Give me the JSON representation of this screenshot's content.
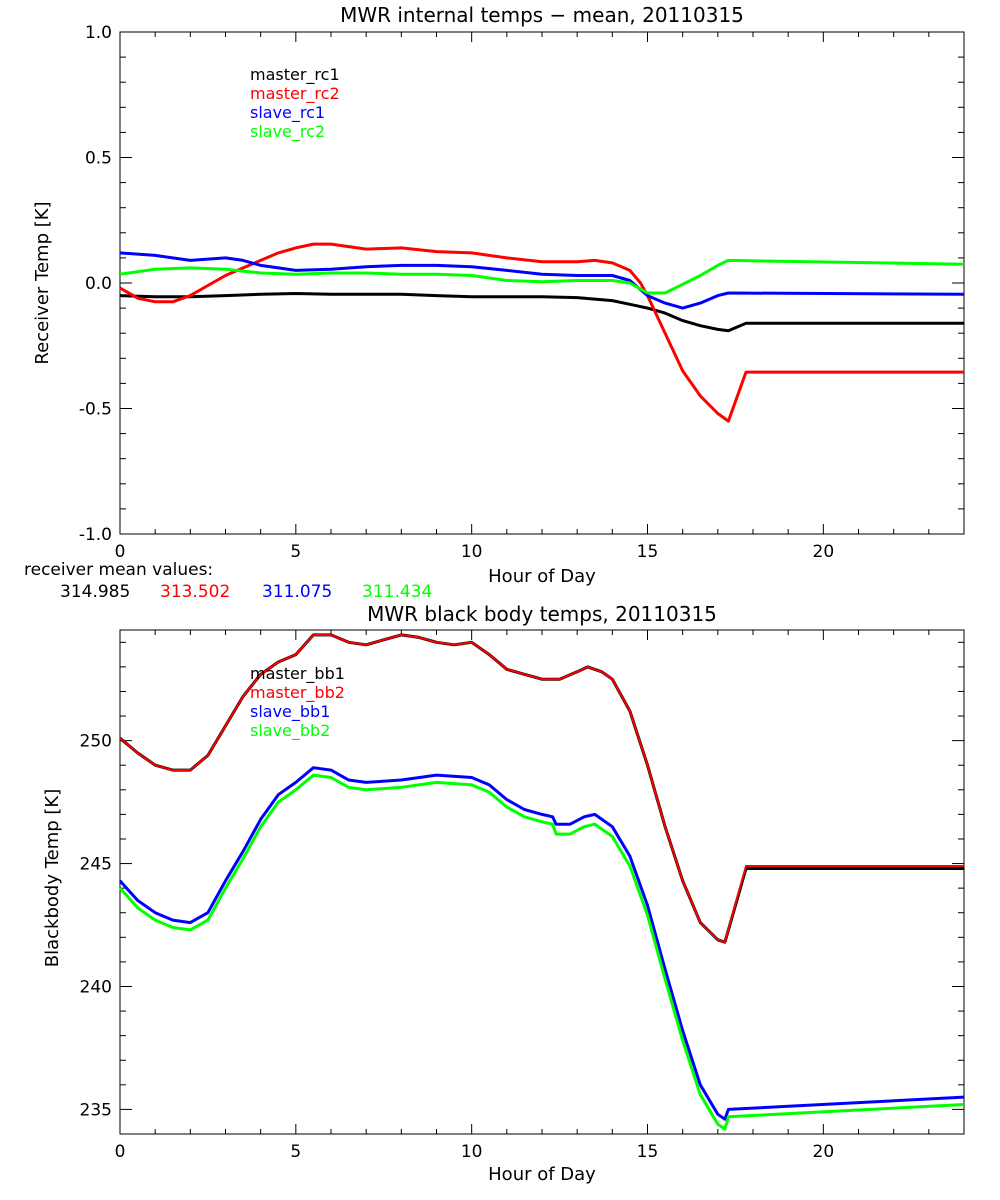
{
  "chart_data": [
    {
      "type": "line",
      "title": "MWR internal temps − mean, 20110315",
      "xlabel": "Hour of Day",
      "ylabel": "Receiver Temp [K]",
      "xlim": [
        0,
        24
      ],
      "ylim": [
        -1.0,
        1.0
      ],
      "x_ticks": [
        "0",
        "5",
        "10",
        "15",
        "20"
      ],
      "y_ticks": [
        "-1.0",
        "-0.5",
        "0.0",
        "0.5",
        "1.0"
      ],
      "grid": false,
      "legend_position": "top-left",
      "mean_label": "receiver mean values:",
      "mean_values": [
        "314.985",
        "313.502",
        "311.075",
        "311.434"
      ],
      "series": [
        {
          "name": "master_rc1",
          "color": "#000000",
          "width": 3,
          "points": [
            [
              0,
              -0.05
            ],
            [
              1,
              -0.055
            ],
            [
              2,
              -0.055
            ],
            [
              3,
              -0.05
            ],
            [
              4,
              -0.045
            ],
            [
              5,
              -0.042
            ],
            [
              6,
              -0.045
            ],
            [
              7,
              -0.045
            ],
            [
              8,
              -0.045
            ],
            [
              9,
              -0.05
            ],
            [
              10,
              -0.055
            ],
            [
              11,
              -0.055
            ],
            [
              12,
              -0.055
            ],
            [
              13,
              -0.058
            ],
            [
              14,
              -0.07
            ],
            [
              14.5,
              -0.085
            ],
            [
              15,
              -0.1
            ],
            [
              15.5,
              -0.12
            ],
            [
              16,
              -0.15
            ],
            [
              16.5,
              -0.17
            ],
            [
              17,
              -0.185
            ],
            [
              17.3,
              -0.19
            ],
            [
              17.8,
              -0.16
            ],
            [
              24,
              -0.16
            ]
          ]
        },
        {
          "name": "master_rc2",
          "color": "#ff0000",
          "width": 3,
          "points": [
            [
              0,
              -0.02
            ],
            [
              0.5,
              -0.06
            ],
            [
              1,
              -0.075
            ],
            [
              1.5,
              -0.075
            ],
            [
              2,
              -0.05
            ],
            [
              2.5,
              -0.01
            ],
            [
              3,
              0.03
            ],
            [
              3.5,
              0.06
            ],
            [
              4,
              0.09
            ],
            [
              4.5,
              0.12
            ],
            [
              5,
              0.14
            ],
            [
              5.5,
              0.155
            ],
            [
              6,
              0.155
            ],
            [
              6.5,
              0.145
            ],
            [
              7,
              0.135
            ],
            [
              8,
              0.14
            ],
            [
              9,
              0.125
            ],
            [
              10,
              0.12
            ],
            [
              11,
              0.1
            ],
            [
              12,
              0.085
            ],
            [
              13,
              0.085
            ],
            [
              13.5,
              0.09
            ],
            [
              14,
              0.08
            ],
            [
              14.5,
              0.05
            ],
            [
              14.8,
              0.0
            ],
            [
              15,
              -0.05
            ],
            [
              15.5,
              -0.2
            ],
            [
              16,
              -0.35
            ],
            [
              16.5,
              -0.45
            ],
            [
              17,
              -0.52
            ],
            [
              17.3,
              -0.55
            ],
            [
              17.8,
              -0.355
            ],
            [
              24,
              -0.355
            ]
          ]
        },
        {
          "name": "slave_rc1",
          "color": "#0000ff",
          "width": 3,
          "points": [
            [
              0,
              0.12
            ],
            [
              1,
              0.11
            ],
            [
              2,
              0.09
            ],
            [
              3,
              0.1
            ],
            [
              3.5,
              0.09
            ],
            [
              4,
              0.07
            ],
            [
              5,
              0.05
            ],
            [
              6,
              0.055
            ],
            [
              7,
              0.065
            ],
            [
              8,
              0.07
            ],
            [
              9,
              0.07
            ],
            [
              10,
              0.065
            ],
            [
              11,
              0.05
            ],
            [
              12,
              0.035
            ],
            [
              13,
              0.03
            ],
            [
              14,
              0.03
            ],
            [
              14.5,
              0.01
            ],
            [
              15,
              -0.05
            ],
            [
              15.5,
              -0.08
            ],
            [
              16,
              -0.1
            ],
            [
              16.5,
              -0.08
            ],
            [
              17,
              -0.05
            ],
            [
              17.3,
              -0.04
            ],
            [
              24,
              -0.045
            ]
          ]
        },
        {
          "name": "slave_rc2",
          "color": "#00ff00",
          "width": 3,
          "points": [
            [
              0,
              0.035
            ],
            [
              1,
              0.055
            ],
            [
              2,
              0.06
            ],
            [
              3,
              0.055
            ],
            [
              4,
              0.04
            ],
            [
              5,
              0.035
            ],
            [
              6,
              0.04
            ],
            [
              7,
              0.04
            ],
            [
              8,
              0.035
            ],
            [
              9,
              0.035
            ],
            [
              10,
              0.03
            ],
            [
              11,
              0.01
            ],
            [
              12,
              0.005
            ],
            [
              13,
              0.01
            ],
            [
              14,
              0.01
            ],
            [
              14.5,
              0.0
            ],
            [
              15,
              -0.04
            ],
            [
              15.5,
              -0.04
            ],
            [
              16,
              -0.005
            ],
            [
              16.5,
              0.03
            ],
            [
              17,
              0.07
            ],
            [
              17.3,
              0.09
            ],
            [
              24,
              0.075
            ]
          ]
        }
      ]
    },
    {
      "type": "line",
      "title": "MWR black body temps, 20110315",
      "xlabel": "Hour of Day",
      "ylabel": "Blackbody Temp [K]",
      "xlim": [
        0,
        24
      ],
      "ylim": [
        234,
        254.5
      ],
      "x_ticks": [
        "0",
        "5",
        "10",
        "15",
        "20"
      ],
      "y_ticks": [
        "235",
        "240",
        "245",
        "250"
      ],
      "grid": false,
      "legend_position": "top-left",
      "series": [
        {
          "name": "master_bb1",
          "color": "#000000",
          "width": 3,
          "points": [
            [
              0,
              250.1
            ],
            [
              0.5,
              249.5
            ],
            [
              1,
              249
            ],
            [
              1.5,
              248.8
            ],
            [
              2,
              248.8
            ],
            [
              2.5,
              249.4
            ],
            [
              3,
              250.6
            ],
            [
              3.5,
              251.8
            ],
            [
              4,
              252.7
            ],
            [
              4.5,
              253.2
            ],
            [
              5,
              253.5
            ],
            [
              5.5,
              254.3
            ],
            [
              6,
              254.3
            ],
            [
              6.5,
              254
            ],
            [
              7,
              253.9
            ],
            [
              7.5,
              254.1
            ],
            [
              8,
              254.3
            ],
            [
              8.5,
              254.2
            ],
            [
              9,
              254
            ],
            [
              9.5,
              253.9
            ],
            [
              10,
              254
            ],
            [
              10.5,
              253.5
            ],
            [
              11,
              252.9
            ],
            [
              11.5,
              252.7
            ],
            [
              12,
              252.5
            ],
            [
              12.5,
              252.5
            ],
            [
              13,
              252.8
            ],
            [
              13.3,
              253
            ],
            [
              13.7,
              252.8
            ],
            [
              14,
              252.5
            ],
            [
              14.5,
              251.2
            ],
            [
              15,
              249
            ],
            [
              15.5,
              246.5
            ],
            [
              16,
              244.3
            ],
            [
              16.5,
              242.6
            ],
            [
              17,
              241.9
            ],
            [
              17.2,
              241.8
            ],
            [
              17.8,
              244.8
            ],
            [
              24,
              244.8
            ]
          ]
        },
        {
          "name": "master_bb2",
          "color": "#ff0000",
          "width": 2,
          "points": [
            [
              0,
              250.1
            ],
            [
              0.5,
              249.5
            ],
            [
              1,
              249
            ],
            [
              1.5,
              248.8
            ],
            [
              2,
              248.8
            ],
            [
              2.5,
              249.4
            ],
            [
              3,
              250.6
            ],
            [
              3.5,
              251.8
            ],
            [
              4,
              252.7
            ],
            [
              4.5,
              253.2
            ],
            [
              5,
              253.5
            ],
            [
              5.5,
              254.3
            ],
            [
              6,
              254.3
            ],
            [
              6.5,
              254
            ],
            [
              7,
              253.9
            ],
            [
              7.5,
              254.1
            ],
            [
              8,
              254.3
            ],
            [
              8.5,
              254.2
            ],
            [
              9,
              254
            ],
            [
              9.5,
              253.9
            ],
            [
              10,
              254
            ],
            [
              10.5,
              253.5
            ],
            [
              11,
              252.9
            ],
            [
              11.5,
              252.7
            ],
            [
              12,
              252.5
            ],
            [
              12.5,
              252.5
            ],
            [
              13,
              252.8
            ],
            [
              13.3,
              253
            ],
            [
              13.7,
              252.8
            ],
            [
              14,
              252.5
            ],
            [
              14.5,
              251.2
            ],
            [
              15,
              249
            ],
            [
              15.5,
              246.5
            ],
            [
              16,
              244.3
            ],
            [
              16.5,
              242.6
            ],
            [
              17,
              241.9
            ],
            [
              17.2,
              241.8
            ],
            [
              17.8,
              244.9
            ],
            [
              24,
              244.9
            ]
          ]
        },
        {
          "name": "slave_bb1",
          "color": "#0000ff",
          "width": 3,
          "points": [
            [
              0,
              244.3
            ],
            [
              0.5,
              243.5
            ],
            [
              1,
              243
            ],
            [
              1.5,
              242.7
            ],
            [
              2,
              242.6
            ],
            [
              2.5,
              243
            ],
            [
              3,
              244.3
            ],
            [
              3.5,
              245.5
            ],
            [
              4,
              246.8
            ],
            [
              4.5,
              247.8
            ],
            [
              5,
              248.3
            ],
            [
              5.5,
              248.9
            ],
            [
              6,
              248.8
            ],
            [
              6.5,
              248.4
            ],
            [
              7,
              248.3
            ],
            [
              8,
              248.4
            ],
            [
              9,
              248.6
            ],
            [
              10,
              248.5
            ],
            [
              10.5,
              248.2
            ],
            [
              11,
              247.6
            ],
            [
              11.5,
              247.2
            ],
            [
              12,
              247
            ],
            [
              12.3,
              246.9
            ],
            [
              12.4,
              246.6
            ],
            [
              12.8,
              246.6
            ],
            [
              13.2,
              246.9
            ],
            [
              13.5,
              247
            ],
            [
              14,
              246.5
            ],
            [
              14.5,
              245.3
            ],
            [
              15,
              243.3
            ],
            [
              15.5,
              240.7
            ],
            [
              16,
              238.2
            ],
            [
              16.5,
              236
            ],
            [
              17,
              234.8
            ],
            [
              17.2,
              234.6
            ],
            [
              17.3,
              235
            ],
            [
              24,
              235.5
            ]
          ]
        },
        {
          "name": "slave_bb2",
          "color": "#00ff00",
          "width": 3,
          "points": [
            [
              0,
              244
            ],
            [
              0.5,
              243.2
            ],
            [
              1,
              242.7
            ],
            [
              1.5,
              242.4
            ],
            [
              2,
              242.3
            ],
            [
              2.5,
              242.7
            ],
            [
              3,
              244
            ],
            [
              3.5,
              245.2
            ],
            [
              4,
              246.5
            ],
            [
              4.5,
              247.5
            ],
            [
              5,
              248
            ],
            [
              5.5,
              248.6
            ],
            [
              6,
              248.5
            ],
            [
              6.5,
              248.1
            ],
            [
              7,
              248
            ],
            [
              8,
              248.1
            ],
            [
              9,
              248.3
            ],
            [
              10,
              248.2
            ],
            [
              10.5,
              247.9
            ],
            [
              11,
              247.3
            ],
            [
              11.5,
              246.9
            ],
            [
              12,
              246.7
            ],
            [
              12.3,
              246.6
            ],
            [
              12.4,
              246.2
            ],
            [
              12.8,
              246.2
            ],
            [
              13.2,
              246.5
            ],
            [
              13.5,
              246.6
            ],
            [
              14,
              246.1
            ],
            [
              14.5,
              244.9
            ],
            [
              15,
              242.9
            ],
            [
              15.5,
              240.3
            ],
            [
              16,
              237.8
            ],
            [
              16.5,
              235.6
            ],
            [
              17,
              234.4
            ],
            [
              17.2,
              234.2
            ],
            [
              17.3,
              234.7
            ],
            [
              24,
              235.2
            ]
          ]
        }
      ]
    }
  ]
}
